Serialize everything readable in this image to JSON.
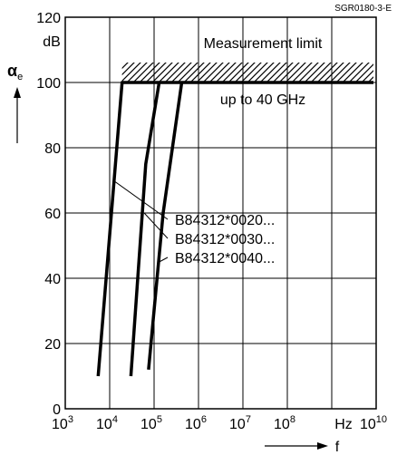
{
  "figure_id": "SGR0180-3-E",
  "chart_data": {
    "type": "line",
    "xlabel": "f",
    "ylabel": "αe",
    "ylabel_symbol": "α",
    "ylabel_subscript": "e",
    "yunit": "dB",
    "xunit": "Hz",
    "xscale": "log",
    "xlim": [
      1000,
      10000000000
    ],
    "ylim": [
      0,
      120
    ],
    "grid": true,
    "x_tick_exponents": [
      "3",
      "4",
      "5",
      "6",
      "7",
      "8",
      "10"
    ],
    "x_tick_base": "10",
    "y_ticks": [
      "0",
      "20",
      "40",
      "60",
      "80",
      "100",
      "120"
    ],
    "measurement_limit": {
      "label": "Measurement limit",
      "value": 100,
      "note": "up to 40 GHz"
    },
    "series": [
      {
        "name": "B84312*0020...",
        "x": [
          5500,
          19000,
          20000,
          10000000000
        ],
        "y": [
          10,
          100,
          100,
          100
        ]
      },
      {
        "name": "B84312*0030...",
        "x": [
          30000,
          65000,
          130000,
          10000000000
        ],
        "y": [
          10,
          75,
          100,
          100
        ]
      },
      {
        "name": "B84312*0040...",
        "x": [
          75000,
          160000,
          420000,
          10000000000
        ],
        "y": [
          12,
          60,
          100,
          100
        ]
      }
    ]
  }
}
